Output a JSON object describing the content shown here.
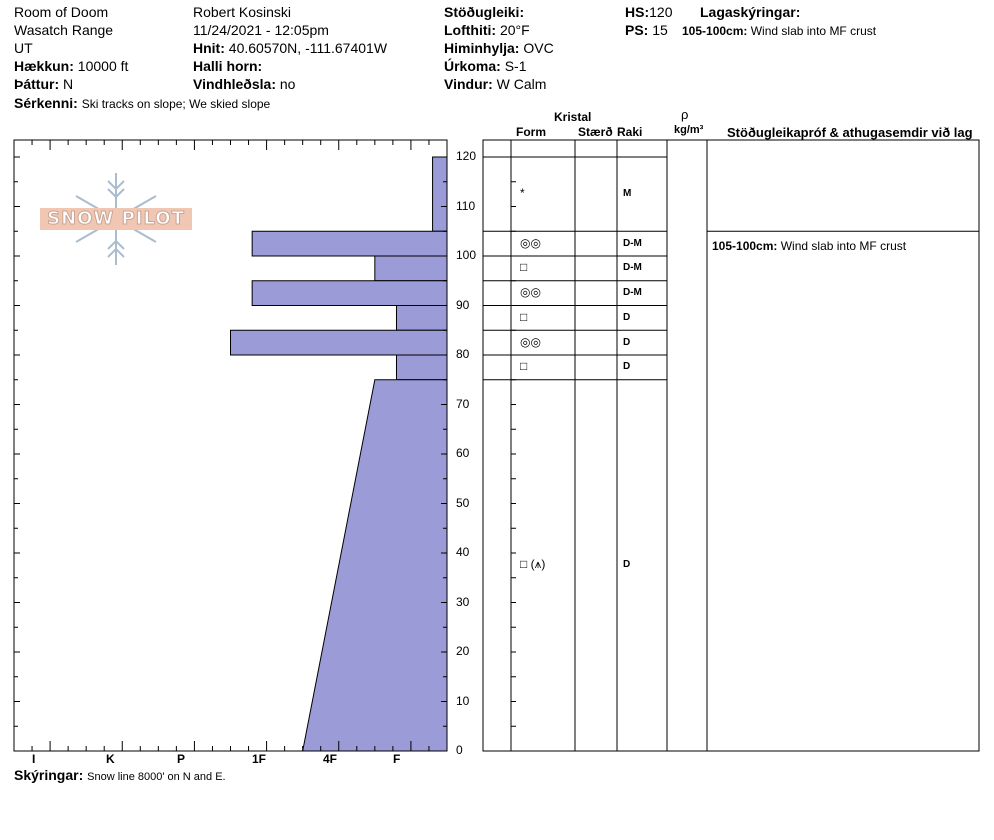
{
  "header": {
    "location": "Room of Doom",
    "range": "Wasatch Range",
    "state": "UT",
    "elevation_label": "Hækkun:",
    "elevation": "10000 ft",
    "aspect_label": "Þáttur:",
    "aspect": "N",
    "features_label": "Sérkenni:",
    "features": "Ski tracks on slope; We skied slope",
    "observer": "Robert  Kosinski",
    "datetime": "11/24/2021 - 12:05pm",
    "coords_label": "Hnit:",
    "coords": "40.60570N, -111.67401W",
    "slope_label": "Halli horn:",
    "slope": "",
    "wind_loading_label": "Vindhleðsla:",
    "wind_loading": "no",
    "stability_label": "Stöðugleiki:",
    "stability": "",
    "air_temp_label": "Lofthiti:",
    "air_temp": "20°F",
    "sky_label": "Himinhylja:",
    "sky": "OVC",
    "precip_label": "Úrkoma:",
    "precip": "S-1",
    "wind_label": "Vindur:",
    "wind": "W Calm",
    "hs_label": "HS:",
    "hs": "120",
    "ps_label": "PS:",
    "ps": "15",
    "layer_notes_label": "Lagaskýringar:",
    "layer_note_range": "105-100cm:",
    "layer_note_text": "Wind slab into MF crust"
  },
  "columns": {
    "crystal": "Kristal",
    "form": "Form",
    "size": "Stærð",
    "moisture": "Raki",
    "rho": "ρ",
    "density_unit": "kg/m³",
    "tests": "Stöðugleikapróf & athugasemdir við lag"
  },
  "footer": {
    "notes_label": "Skýringar:",
    "notes": "Snow line 8000' on N and E."
  },
  "logo": {
    "text": "SNOW PILOT"
  },
  "chart_data": {
    "type": "bar",
    "title": "",
    "ylabel": "",
    "ylim": [
      0,
      120
    ],
    "yticks": [
      0,
      10,
      20,
      30,
      40,
      50,
      60,
      70,
      80,
      90,
      100,
      110,
      120
    ],
    "xticks": [
      "I",
      "K",
      "P",
      "1F",
      "4F",
      "F"
    ],
    "hardness_scale": "hand hardness, F (fist) = 1 ... I (ice) = 6",
    "layers": [
      {
        "top": 120,
        "bottom": 105,
        "hardness_top": 0.2,
        "hardness_bottom": 0.2,
        "form": "*",
        "moisture": "M"
      },
      {
        "top": 105,
        "bottom": 100,
        "hardness_top": 2.7,
        "hardness_bottom": 2.7,
        "form": "◎◎",
        "moisture": "D-M",
        "comment": "Wind slab into MF crust"
      },
      {
        "top": 100,
        "bottom": 95,
        "hardness_top": 1.0,
        "hardness_bottom": 1.0,
        "form": "□",
        "moisture": "D-M"
      },
      {
        "top": 95,
        "bottom": 90,
        "hardness_top": 2.7,
        "hardness_bottom": 2.7,
        "form": "◎◎",
        "moisture": "D-M"
      },
      {
        "top": 90,
        "bottom": 85,
        "hardness_top": 0.7,
        "hardness_bottom": 0.7,
        "form": "□",
        "moisture": "D"
      },
      {
        "top": 85,
        "bottom": 80,
        "hardness_top": 3.0,
        "hardness_bottom": 3.0,
        "form": "◎◎",
        "moisture": "D"
      },
      {
        "top": 80,
        "bottom": 75,
        "hardness_top": 0.7,
        "hardness_bottom": 0.7,
        "form": "□",
        "moisture": "D"
      },
      {
        "top": 75,
        "bottom": 0,
        "hardness_top": 1.0,
        "hardness_bottom": 2.0,
        "form": "□ (⩚)",
        "moisture": "D"
      }
    ]
  }
}
